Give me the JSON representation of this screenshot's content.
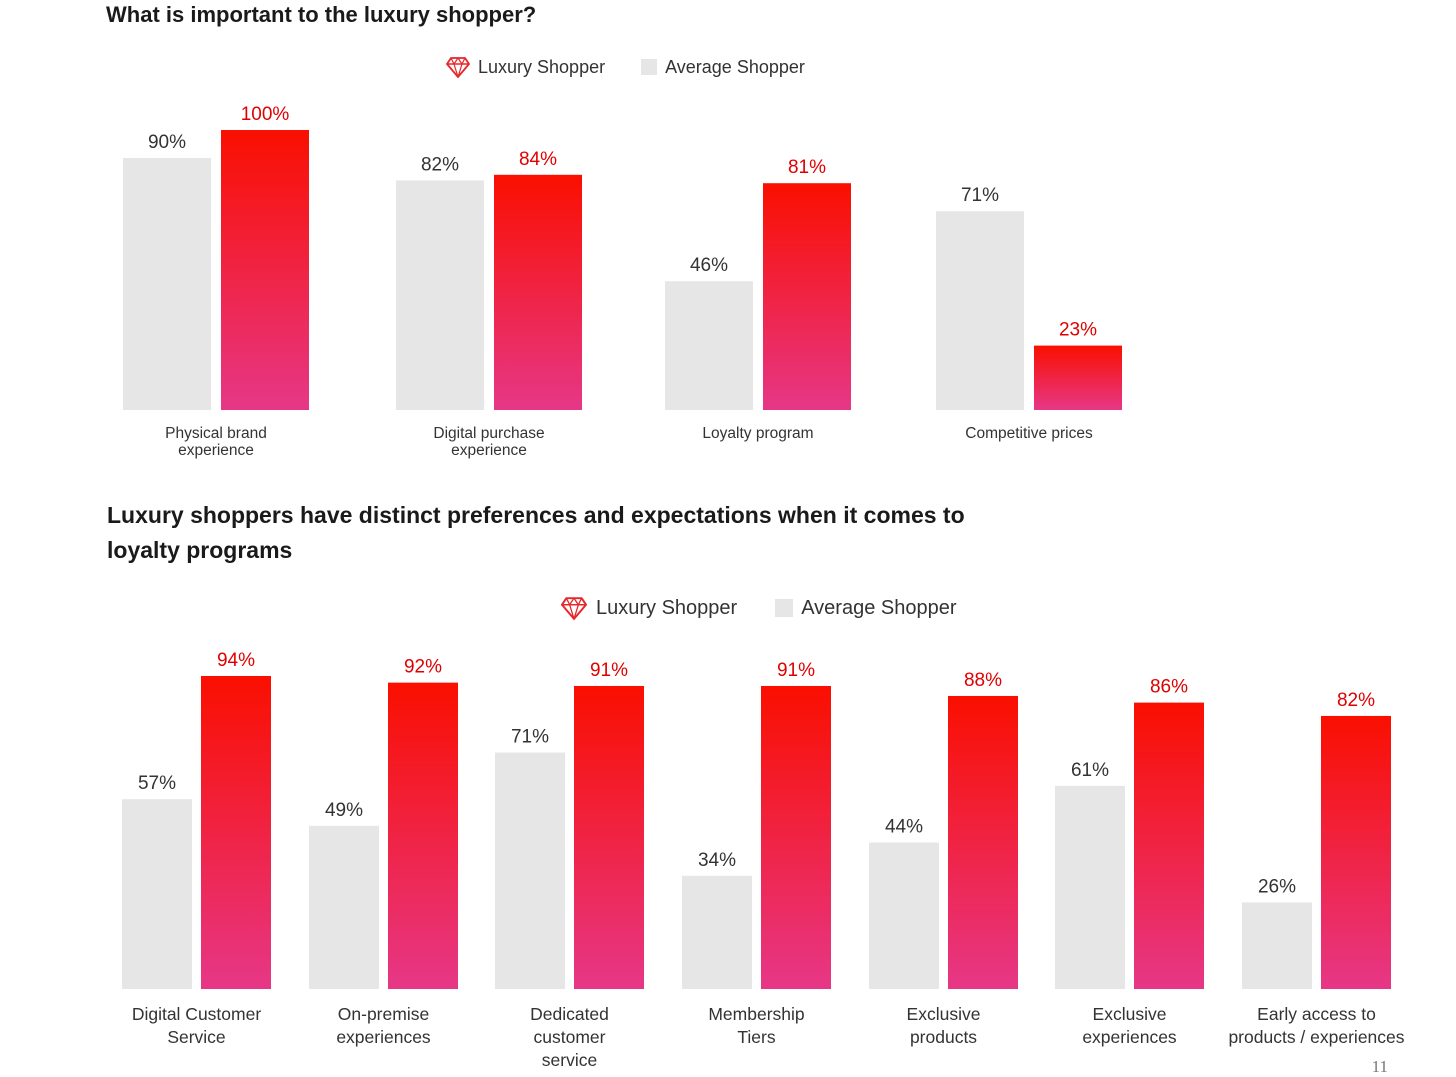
{
  "top_chart": {
    "title": "What is important to the luxury shopper?",
    "legend": {
      "luxury": "Luxury Shopper",
      "average": "Average Shopper"
    }
  },
  "bottom_chart": {
    "title": "Luxury shoppers have distinct preferences and expectations when it comes to loyalty programs",
    "legend": {
      "luxury": "Luxury Shopper",
      "average": "Average Shopper"
    }
  },
  "page_number": "11",
  "icons": {
    "legend_luxury": "gem-icon",
    "legend_average": "gray-square-swatch"
  },
  "colors": {
    "average": "#e6e6e6",
    "luxury_top": "#fa0f00",
    "luxury_bottom": "#e63787",
    "luxury_label": "#e00000"
  },
  "chart_data": [
    {
      "type": "bar",
      "title": "What is important to the luxury shopper?",
      "categories": [
        [
          "Physical brand",
          "experience"
        ],
        [
          "Digital purchase",
          "experience"
        ],
        [
          "Loyalty program"
        ],
        [
          "Competitive prices"
        ]
      ],
      "series": [
        {
          "name": "Average Shopper",
          "values": [
            90,
            82,
            46,
            71
          ],
          "labels": [
            "90%",
            "82%",
            "46%",
            "71%"
          ]
        },
        {
          "name": "Luxury Shopper",
          "values": [
            100,
            84,
            81,
            23
          ],
          "labels": [
            "100%",
            "84%",
            "81%",
            "23%"
          ]
        }
      ],
      "ylim": [
        0,
        100
      ],
      "unit": "%",
      "legend": "top-center",
      "grid": false
    },
    {
      "type": "bar",
      "title": "Luxury shoppers have distinct preferences and expectations when it comes to loyalty programs",
      "categories": [
        [
          "Digital Customer",
          "Service"
        ],
        [
          "On-premise",
          "experiences"
        ],
        [
          "Dedicated",
          "customer",
          "service"
        ],
        [
          "Membership",
          "Tiers"
        ],
        [
          "Exclusive",
          "products"
        ],
        [
          "Exclusive",
          "experiences"
        ],
        [
          "Early access to",
          "products / experiences"
        ]
      ],
      "series": [
        {
          "name": "Average Shopper",
          "values": [
            57,
            49,
            71,
            34,
            44,
            61,
            26
          ],
          "labels": [
            "57%",
            "49%",
            "71%",
            "34%",
            "44%",
            "61%",
            "26%"
          ]
        },
        {
          "name": "Luxury Shopper",
          "values": [
            94,
            92,
            91,
            91,
            88,
            86,
            82
          ],
          "labels": [
            "94%",
            "92%",
            "91%",
            "91%",
            "88%",
            "86%",
            "82%"
          ]
        }
      ],
      "ylim": [
        0,
        100
      ],
      "unit": "%",
      "legend": "top-center",
      "grid": false
    }
  ]
}
